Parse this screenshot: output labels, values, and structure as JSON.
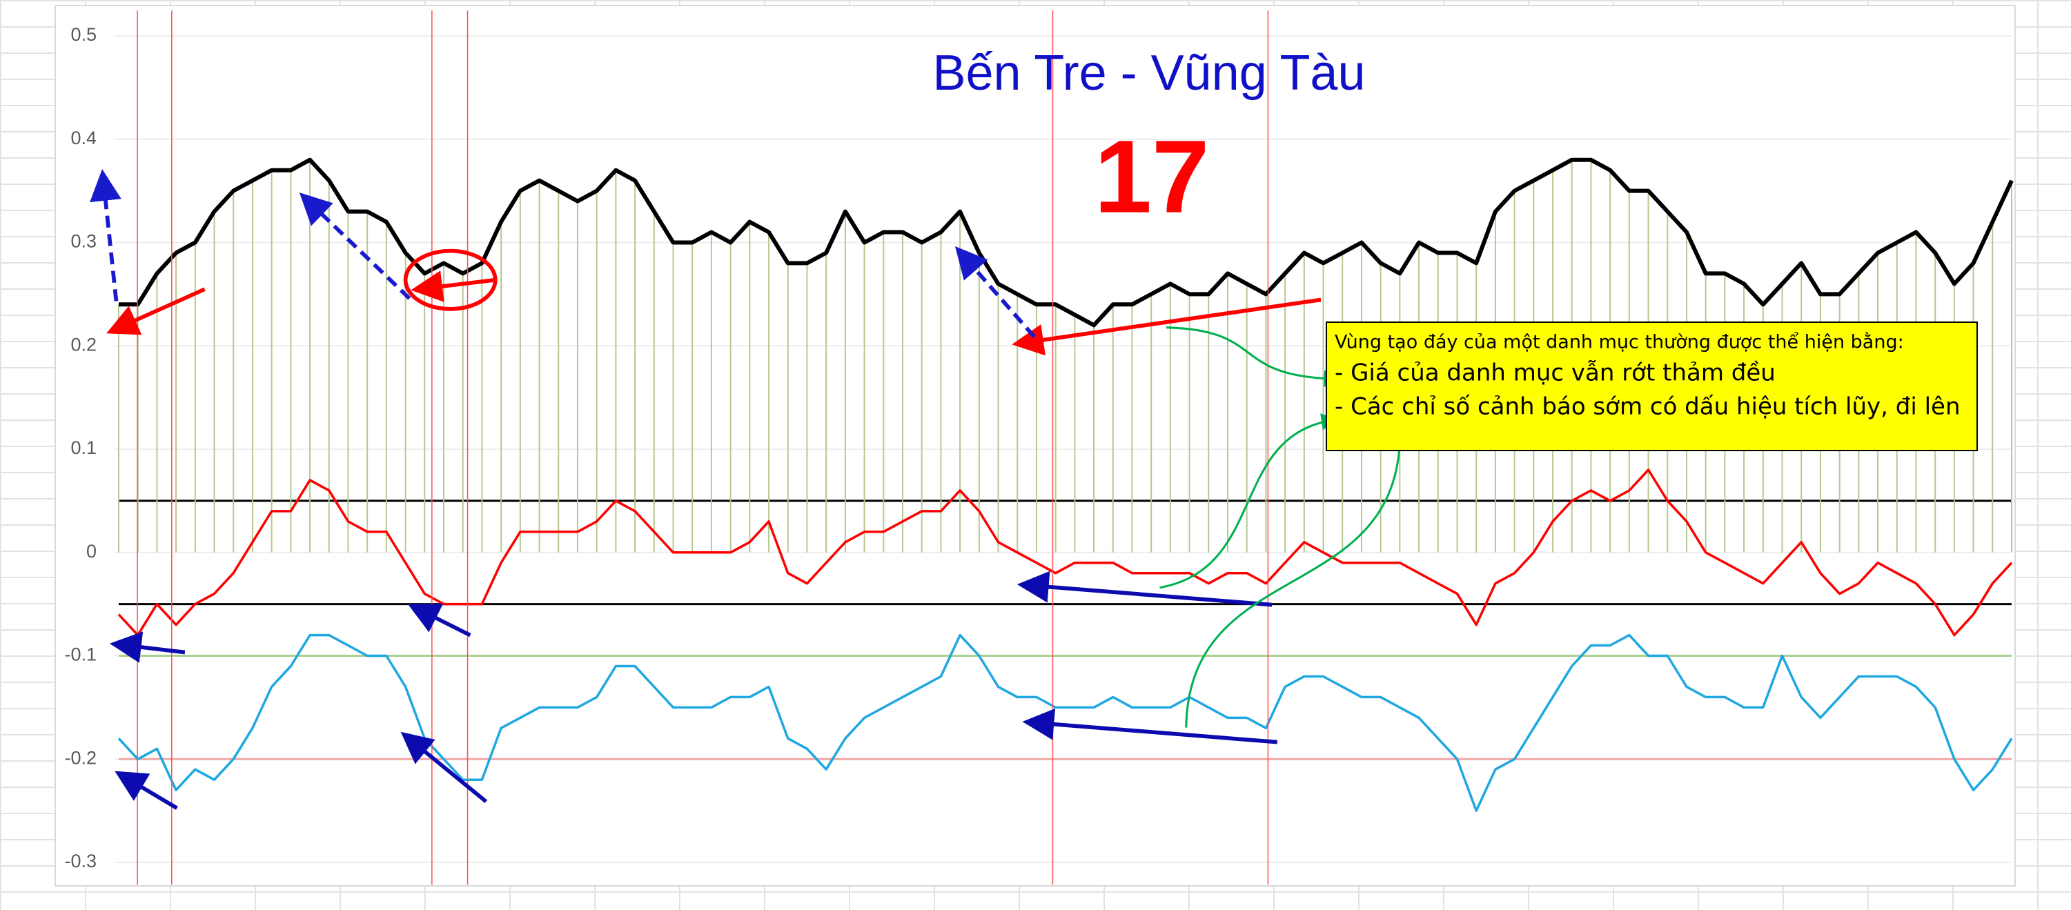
{
  "chart_data": {
    "type": "line",
    "title": "Bến Tre - Vũng Tàu",
    "subtitle": "17",
    "annotation": {
      "lines": [
        "Vùng tạo đáy của một danh mục thường được thể hiện bằng:",
        "- Giá của danh mục vẫn rớt thảm đều",
        "- Các chỉ số cảnh báo sớm có dấu hiệu tích lũy, đi lên"
      ]
    },
    "ylim": [
      -0.3,
      0.5
    ],
    "yticks": [
      0.5,
      0.4,
      0.3,
      0.2,
      0.1,
      0,
      -0.1,
      -0.2,
      -0.3
    ],
    "hlines": [
      {
        "value": 0.05,
        "color": "#000000"
      },
      {
        "value": -0.05,
        "color": "#000000"
      },
      {
        "value": -0.1,
        "color": "#a9d18e"
      },
      {
        "value": -0.2,
        "color": "#f4a6a6"
      }
    ],
    "series": [
      {
        "color": "#000000",
        "drop_lines": true,
        "drop_color": "#b5c98f",
        "values": [
          0.24,
          0.24,
          0.27,
          0.29,
          0.3,
          0.33,
          0.35,
          0.36,
          0.37,
          0.37,
          0.38,
          0.36,
          0.33,
          0.33,
          0.32,
          0.29,
          0.27,
          0.28,
          0.27,
          0.28,
          0.32,
          0.35,
          0.36,
          0.35,
          0.34,
          0.35,
          0.37,
          0.36,
          0.33,
          0.3,
          0.3,
          0.31,
          0.3,
          0.32,
          0.31,
          0.28,
          0.28,
          0.29,
          0.33,
          0.3,
          0.31,
          0.31,
          0.3,
          0.31,
          0.33,
          0.29,
          0.26,
          0.25,
          0.24,
          0.24,
          0.23,
          0.22,
          0.24,
          0.24,
          0.25,
          0.26,
          0.25,
          0.25,
          0.27,
          0.26,
          0.25,
          0.27,
          0.29,
          0.28,
          0.29,
          0.3,
          0.28,
          0.27,
          0.3,
          0.29,
          0.29,
          0.28,
          0.33,
          0.35,
          0.36,
          0.37,
          0.38,
          0.38,
          0.37,
          0.35,
          0.35,
          0.33,
          0.31,
          0.27,
          0.27,
          0.26,
          0.24,
          0.26,
          0.28,
          0.25,
          0.25,
          0.27,
          0.29,
          0.3,
          0.31,
          0.29,
          0.26,
          0.28,
          0.32,
          0.36
        ]
      },
      {
        "color": "#ff0000",
        "drop_lines": false,
        "values": [
          -0.06,
          -0.08,
          -0.05,
          -0.07,
          -0.05,
          -0.04,
          -0.02,
          0.01,
          0.04,
          0.04,
          0.07,
          0.06,
          0.03,
          0.02,
          0.02,
          -0.01,
          -0.04,
          -0.05,
          -0.05,
          -0.05,
          -0.01,
          0.02,
          0.02,
          0.02,
          0.02,
          0.03,
          0.05,
          0.04,
          0.02,
          0.0,
          0.0,
          0.0,
          0.0,
          0.01,
          0.03,
          -0.02,
          -0.03,
          -0.01,
          0.01,
          0.02,
          0.02,
          0.03,
          0.04,
          0.04,
          0.06,
          0.04,
          0.01,
          0.0,
          -0.01,
          -0.02,
          -0.01,
          -0.01,
          -0.01,
          -0.02,
          -0.02,
          -0.02,
          -0.02,
          -0.03,
          -0.02,
          -0.02,
          -0.03,
          -0.01,
          0.01,
          0.0,
          -0.01,
          -0.01,
          -0.01,
          -0.01,
          -0.02,
          -0.03,
          -0.04,
          -0.07,
          -0.03,
          -0.02,
          0.0,
          0.03,
          0.05,
          0.06,
          0.05,
          0.06,
          0.08,
          0.05,
          0.03,
          0.0,
          -0.01,
          -0.02,
          -0.03,
          -0.01,
          0.01,
          -0.02,
          -0.04,
          -0.03,
          -0.01,
          -0.02,
          -0.03,
          -0.05,
          -0.08,
          -0.06,
          -0.03,
          -0.01
        ]
      },
      {
        "color": "#1ea7e1",
        "drop_lines": false,
        "values": [
          -0.18,
          -0.2,
          -0.19,
          -0.23,
          -0.21,
          -0.22,
          -0.2,
          -0.17,
          -0.13,
          -0.11,
          -0.08,
          -0.08,
          -0.09,
          -0.1,
          -0.1,
          -0.13,
          -0.18,
          -0.2,
          -0.22,
          -0.22,
          -0.17,
          -0.16,
          -0.15,
          -0.15,
          -0.15,
          -0.14,
          -0.11,
          -0.11,
          -0.13,
          -0.15,
          -0.15,
          -0.15,
          -0.14,
          -0.14,
          -0.13,
          -0.18,
          -0.19,
          -0.21,
          -0.18,
          -0.16,
          -0.15,
          -0.14,
          -0.13,
          -0.12,
          -0.08,
          -0.1,
          -0.13,
          -0.14,
          -0.14,
          -0.15,
          -0.15,
          -0.15,
          -0.14,
          -0.15,
          -0.15,
          -0.15,
          -0.14,
          -0.15,
          -0.16,
          -0.16,
          -0.17,
          -0.13,
          -0.12,
          -0.12,
          -0.13,
          -0.14,
          -0.14,
          -0.15,
          -0.16,
          -0.18,
          -0.2,
          -0.25,
          -0.21,
          -0.2,
          -0.17,
          -0.14,
          -0.11,
          -0.09,
          -0.09,
          -0.08,
          -0.1,
          -0.1,
          -0.13,
          -0.14,
          -0.14,
          -0.15,
          -0.15,
          -0.1,
          -0.14,
          -0.16,
          -0.14,
          -0.12,
          -0.12,
          -0.12,
          -0.13,
          -0.15,
          -0.2,
          -0.23,
          -0.21,
          -0.18
        ]
      }
    ]
  }
}
